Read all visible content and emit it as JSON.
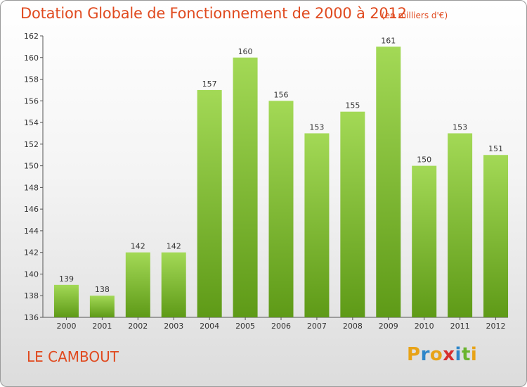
{
  "header": {
    "title": "Dotation Globale de Fonctionnement de 2000 à 2012",
    "unit": "(en milliers d'€)"
  },
  "commune": "LE CAMBOUT",
  "logo": {
    "letters": [
      "P",
      "r",
      "o",
      "x",
      "i",
      "t",
      "i"
    ],
    "colors": [
      "#e8a317",
      "#2e86c9",
      "#e8a317",
      "#d62e2e",
      "#2e86c9",
      "#6ab42e",
      "#e8a317"
    ]
  },
  "colors": {
    "accent": "#e04a1f",
    "bar_light": "#a3d956",
    "bar_dark": "#5e9a17"
  },
  "chart_data": {
    "type": "bar",
    "categories": [
      "2000",
      "2001",
      "2002",
      "2003",
      "2004",
      "2005",
      "2006",
      "2007",
      "2008",
      "2009",
      "2010",
      "2011",
      "2012"
    ],
    "values": [
      139,
      138,
      142,
      142,
      157,
      160,
      156,
      153,
      155,
      161,
      150,
      153,
      151
    ],
    "title": "Dotation Globale de Fonctionnement de 2000 à 2012",
    "subtitle": "(en milliers d'€)",
    "xlabel": "",
    "ylabel": "",
    "ylim": [
      136,
      162
    ],
    "yticks": [
      136,
      138,
      140,
      142,
      144,
      146,
      148,
      150,
      152,
      154,
      156,
      158,
      160,
      162
    ],
    "grid": false
  }
}
